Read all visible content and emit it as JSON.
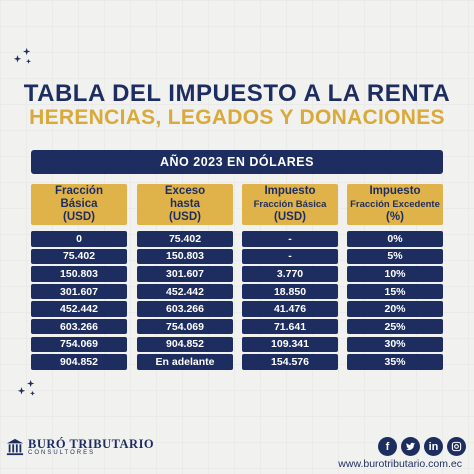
{
  "title_line1": "TABLA DEL IMPUESTO A LA RENTA",
  "title_line2": "HERENCIAS, LEGADOS Y DONACIONES",
  "year_banner": "AÑO 2023 EN DÓLARES",
  "headers": {
    "c1": [
      "Fracción",
      "Básica",
      "(USD)"
    ],
    "c2": [
      "Exceso",
      "hasta",
      "(USD)"
    ],
    "c3": [
      "Impuesto",
      "Fracción Básica",
      "(USD)"
    ],
    "c4": [
      "Impuesto",
      "Fracción Excedente",
      "(%)"
    ]
  },
  "rows": [
    [
      "0",
      "75.402",
      "-",
      "0%"
    ],
    [
      "75.402",
      "150.803",
      "-",
      "5%"
    ],
    [
      "150.803",
      "301.607",
      "3.770",
      "10%"
    ],
    [
      "301.607",
      "452.442",
      "18.850",
      "15%"
    ],
    [
      "452.442",
      "603.266",
      "41.476",
      "20%"
    ],
    [
      "603.266",
      "754.069",
      "71.641",
      "25%"
    ],
    [
      "754.069",
      "904.852",
      "109.341",
      "30%"
    ],
    [
      "904.852",
      "En adelante",
      "154.576",
      "35%"
    ]
  ],
  "brand": {
    "name": "BURÓ TRIBUTARIO",
    "sub": "CONSULTORES"
  },
  "socials": [
    {
      "icon": "facebook-icon",
      "glyph": "f"
    },
    {
      "icon": "twitter-icon",
      "glyph": "🐦"
    },
    {
      "icon": "linkedin-icon",
      "glyph": "in"
    },
    {
      "icon": "instagram-icon",
      "glyph": "◎"
    }
  ],
  "website": "www.burotributario.com.ec",
  "colors": {
    "navy": "#1d2d5f",
    "gold": "#e0b24a",
    "background": "#f1f1ef"
  }
}
